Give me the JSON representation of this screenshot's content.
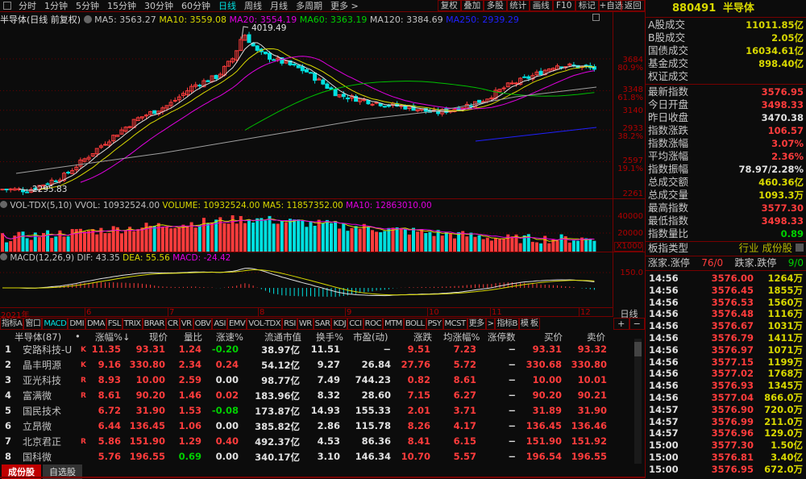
{
  "toolbar": {
    "periods": [
      "分时",
      "1分钟",
      "5分钟",
      "15分钟",
      "30分钟",
      "60分钟",
      "日线",
      "周线",
      "月线",
      "多周期",
      "更多 >"
    ],
    "active": "日线",
    "buttons": [
      "复权",
      "叠加",
      "多股",
      "统计",
      "画线",
      "F10",
      "标记",
      "+自选",
      "返回"
    ]
  },
  "chart": {
    "title": "半导体(日线 前复权)",
    "ma": {
      "ma5": "MA5: 3563.27",
      "ma10": "MA10: 3559.08",
      "ma20": "MA20: 3554.19",
      "ma60": "MA60: 3363.19",
      "ma120": "MA120: 3384.69",
      "ma250": "MA250: 2939.29"
    },
    "high_label": "4019.49",
    "low_label": "2295.83",
    "axis": [
      {
        "p": "3684",
        "f": "80.9%"
      },
      {
        "p": "3348",
        "f": "61.8%"
      },
      {
        "p": "3140",
        "f": ""
      },
      {
        "p": "2933",
        "f": "38.2%"
      },
      {
        "p": "2597",
        "f": "19.1%"
      },
      {
        "p": "2261",
        "f": ""
      }
    ],
    "colors": {
      "up": "#ff3c3c",
      "down": "#00e0e0",
      "ma5": "#e0e0e0",
      "ma10": "#d8d800",
      "ma20": "#e000e0",
      "ma60": "#00c000",
      "ma120": "#a0a0a0",
      "ma250": "#2020ff"
    }
  },
  "volume": {
    "title": "VOL-TDX(5,10)",
    "vvol": "VVOL: 10932524.00",
    "volume": "VOLUME: 10932524.00",
    "ma5": "MA5: 11857352.00",
    "ma10": "MA10: 12863010.00",
    "axis": [
      "40000",
      "20000",
      "X1000"
    ]
  },
  "macd": {
    "title": "MACD(12,26,9)",
    "dif": "DIF: 43.35",
    "dea": "DEA: 55.56",
    "macd": "MACD: -24.42",
    "axis": "150.0"
  },
  "dates": {
    "year": "2021年",
    "months": [
      "6",
      "7",
      "8",
      "9",
      "10",
      "11",
      "12"
    ],
    "period": "日线"
  },
  "indicator_tabs": [
    "指标A",
    "窗口",
    "MACD",
    "DMI",
    "DMA",
    "FSL",
    "TRIX",
    "BRAR",
    "CR",
    "VR",
    "OBV",
    "ASI",
    "EMV",
    "VOL-TDX",
    "RSI",
    "WR",
    "SAR",
    "KDJ",
    "CCI",
    "ROC",
    "MTM",
    "BOLL",
    "PSY",
    "MCST",
    "更多",
    ">",
    "指标B",
    "模 板"
  ],
  "active_indicator": "MACD",
  "zoom_buttons": [
    "+",
    "−"
  ],
  "table": {
    "headers": [
      "半导体(87)",
      "•",
      "涨幅%↓",
      "现价",
      "量比",
      "涨速%",
      "流通市值",
      "换手%",
      "市盈(动)",
      "涨跌",
      "均涨幅%",
      "涨停数",
      "买价",
      "卖价"
    ],
    "rows": [
      [
        "1",
        "安路科技-U",
        "K",
        "11.35",
        "93.31",
        "1.24",
        "-0.20",
        "38.97亿",
        "11.51",
        "−",
        "9.51",
        "7.23",
        "−",
        "93.31",
        "93.32"
      ],
      [
        "2",
        "晶丰明源",
        "K",
        "9.16",
        "330.80",
        "2.34",
        "0.24",
        "54.12亿",
        "9.27",
        "26.84",
        "27.76",
        "5.72",
        "−",
        "330.68",
        "330.80"
      ],
      [
        "3",
        "亚光科技",
        "R",
        "8.93",
        "10.00",
        "2.59",
        "0.00",
        "98.77亿",
        "7.49",
        "744.23",
        "0.82",
        "8.61",
        "−",
        "10.00",
        "10.01"
      ],
      [
        "4",
        "富满微",
        "R",
        "8.61",
        "90.20",
        "1.46",
        "0.02",
        "183.96亿",
        "8.32",
        "28.60",
        "7.15",
        "6.27",
        "−",
        "90.20",
        "90.21"
      ],
      [
        "5",
        "国民技术",
        "",
        "6.72",
        "31.90",
        "1.53",
        "-0.08",
        "173.87亿",
        "14.93",
        "155.33",
        "2.01",
        "3.71",
        "−",
        "31.89",
        "31.90"
      ],
      [
        "6",
        "立昂微",
        "",
        "6.44",
        "136.45",
        "1.06",
        "0.00",
        "385.82亿",
        "2.86",
        "115.78",
        "8.26",
        "4.17",
        "−",
        "136.45",
        "136.46"
      ],
      [
        "7",
        "北京君正",
        "R",
        "5.86",
        "151.90",
        "1.29",
        "0.40",
        "492.37亿",
        "4.53",
        "86.36",
        "8.41",
        "6.15",
        "−",
        "151.90",
        "151.92"
      ],
      [
        "8",
        "国科微",
        "",
        "5.76",
        "196.55",
        "0.69",
        "0.00",
        "340.17亿",
        "3.10",
        "146.34",
        "10.70",
        "5.57",
        "−",
        "196.54",
        "196.55"
      ]
    ]
  },
  "bottom_tabs": [
    "成份股",
    "自选股"
  ],
  "panel": {
    "code": "880491",
    "name": "半导体",
    "turnover": [
      [
        "A股成交",
        "11011.85亿"
      ],
      [
        "B股成交",
        "2.05亿"
      ],
      [
        "国债成交",
        "16034.61亿"
      ],
      [
        "基金成交",
        "898.40亿"
      ],
      [
        "权证成交",
        ""
      ]
    ],
    "stats": [
      [
        "最新指数",
        "3576.95",
        "red"
      ],
      [
        "今日开盘",
        "3498.33",
        "red"
      ],
      [
        "昨日收盘",
        "3470.38",
        "wht"
      ],
      [
        "指数涨跌",
        "106.57",
        "red"
      ],
      [
        "指数涨幅",
        "3.07%",
        "red"
      ],
      [
        "平均涨幅",
        "2.36%",
        "red"
      ],
      [
        "指数振幅",
        "78.97/2.28%",
        "wht"
      ],
      [
        "总成交额",
        "460.36亿",
        "yel"
      ],
      [
        "总成交量",
        "1093.3万",
        "yel"
      ],
      [
        "最高指数",
        "3577.30",
        "red"
      ],
      [
        "最低指数",
        "3498.33",
        "red"
      ],
      [
        "指数量比",
        "0.89",
        "grn"
      ]
    ],
    "type_label": "板指类型",
    "type_value": "行业 成份股",
    "up_label": "涨家.涨停",
    "up_value": "76/0",
    "down_label": "跌家.跌停",
    "down_value": "9/0",
    "ticks": [
      [
        "14:56",
        "3576.00",
        "1264万"
      ],
      [
        "14:56",
        "3576.45",
        "1855万"
      ],
      [
        "14:56",
        "3576.53",
        "1560万"
      ],
      [
        "14:56",
        "3576.48",
        "1116万"
      ],
      [
        "14:56",
        "3576.67",
        "1031万"
      ],
      [
        "14:56",
        "3576.79",
        "1411万"
      ],
      [
        "14:56",
        "3576.97",
        "1071万"
      ],
      [
        "14:56",
        "3577.15",
        "1199万"
      ],
      [
        "14:56",
        "3577.02",
        "1768万"
      ],
      [
        "14:56",
        "3576.93",
        "1345万"
      ],
      [
        "14:56",
        "3577.04",
        "866.0万"
      ],
      [
        "14:57",
        "3576.90",
        "720.0万"
      ],
      [
        "14:57",
        "3576.99",
        "211.0万"
      ],
      [
        "14:57",
        "3576.96",
        "129.0万"
      ],
      [
        "15:00",
        "3577.30",
        "1.50亿"
      ],
      [
        "15:00",
        "3576.81",
        "3.40亿"
      ],
      [
        "15:00",
        "3576.95",
        "672.0万"
      ]
    ]
  }
}
